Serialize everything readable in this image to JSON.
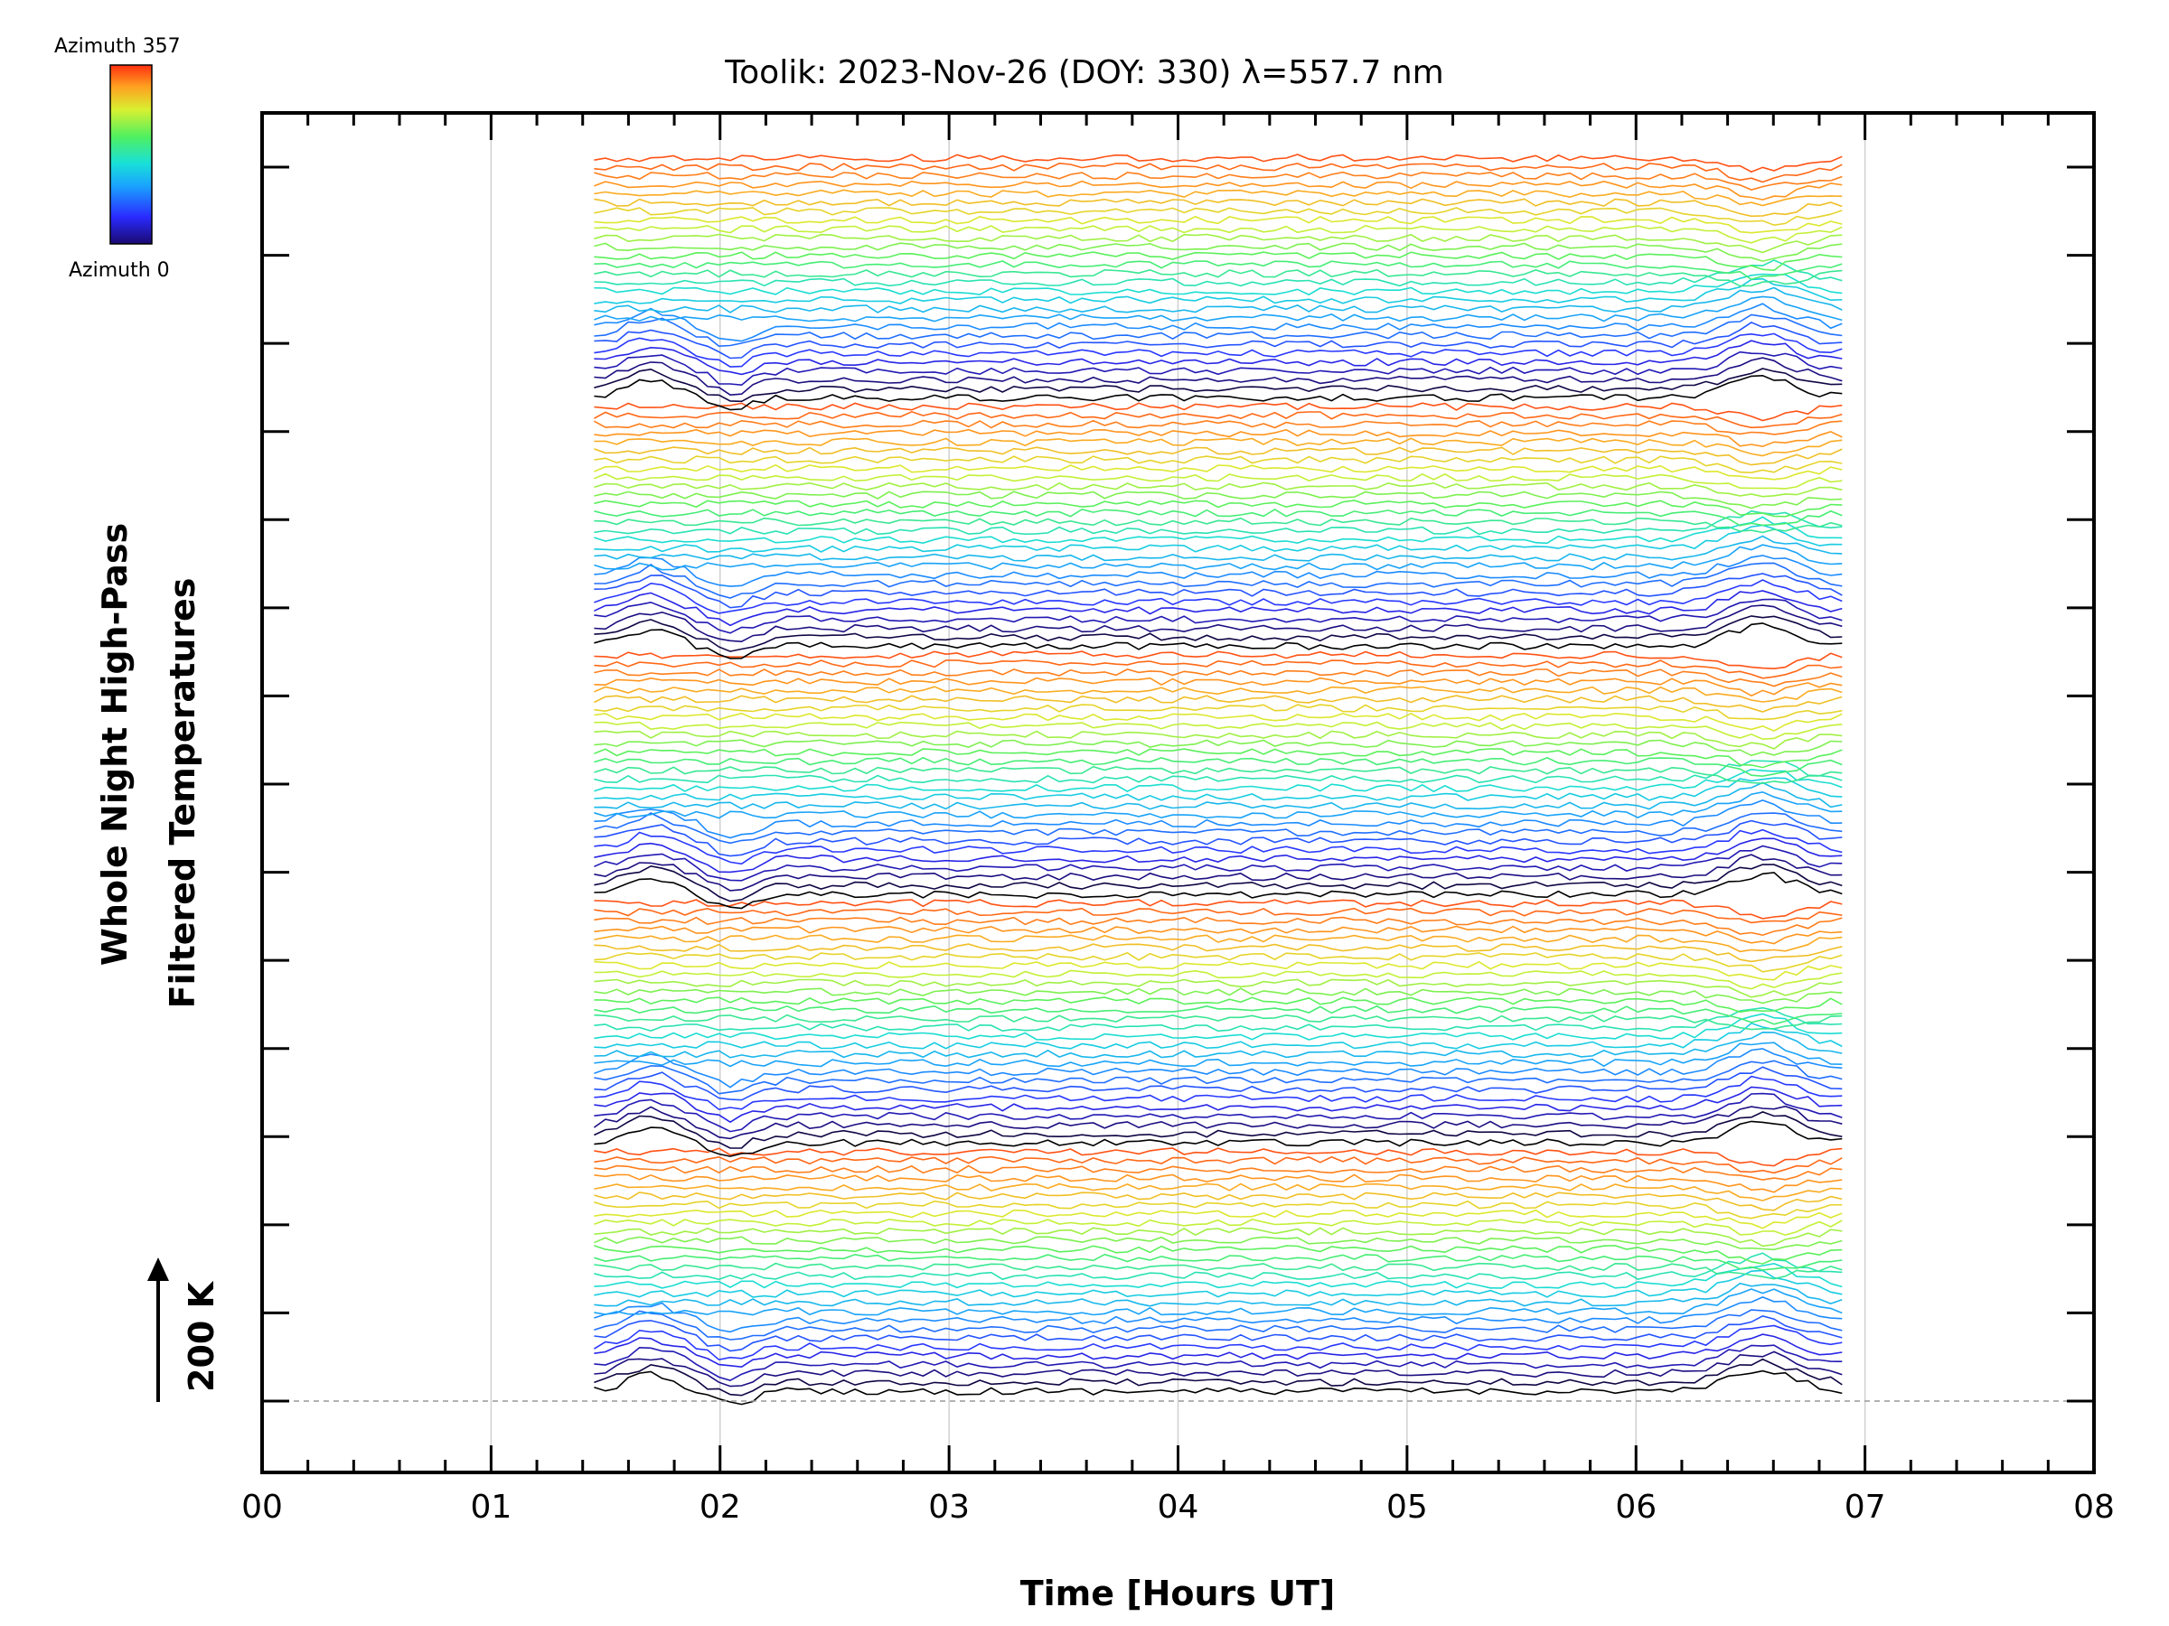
{
  "chart_data": {
    "type": "line",
    "title": "Toolik: 2023-Nov-26 (DOY: 330) λ=557.7 nm",
    "xlabel": "Time [Hours UT]",
    "ylabel_line1": "Whole Night High-Pass",
    "ylabel_line2": "Filtered Temperatures",
    "scale_label": "200 K",
    "x_tick_labels": [
      "00",
      "01",
      "02",
      "03",
      "04",
      "05",
      "06",
      "07",
      "08"
    ],
    "xlim": [
      0,
      8
    ],
    "x_minor_step": 0.2,
    "y_major_tick_count": 15,
    "grid": "vertical lines at whole hours",
    "baseline": "dashed horizontal line at bottom trace",
    "colorbar": {
      "top_label": "Azimuth 357",
      "bottom_label": "Azimuth 0",
      "colormap": "rainbow (blue at 0, red at 357)",
      "placement": "top-left"
    },
    "data_time_range_hours": [
      1.45,
      6.9
    ],
    "trace_count": 140,
    "colors": {
      "axis": "#000000",
      "grid": "#d0d0d0",
      "baseline": "#999999",
      "first_trace": "#000000"
    },
    "note_series": "Stacked high-pass filtered temperature traces for multiple zenith rings; each ring spans azimuth 0-357 (black/blue through green/yellow to orange/red)"
  }
}
